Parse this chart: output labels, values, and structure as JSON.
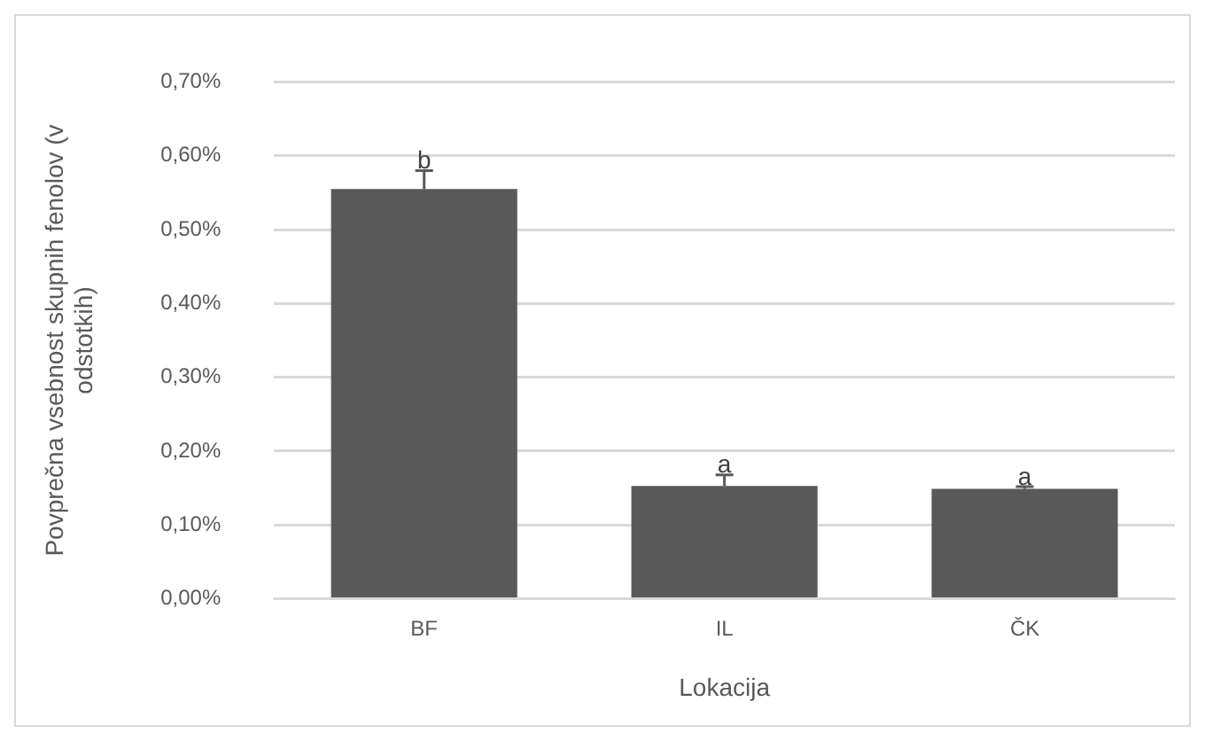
{
  "chart_data": {
    "type": "bar",
    "xlabel": "Lokacija",
    "ylabel": "Povprečna vsebnost skupnih fenolov (v odstotkih)",
    "categories": [
      "BF",
      "IL",
      "ČK"
    ],
    "values": [
      0.555,
      0.153,
      0.149
    ],
    "errors": [
      0.025,
      0.015,
      0.003
    ],
    "color": "#595959",
    "ylim": [
      0,
      0.7
    ],
    "yticks": [
      {
        "value": 0,
        "label": "0,00%"
      },
      {
        "value": 0.1,
        "label": "0,10%"
      },
      {
        "value": 0.2,
        "label": "0,20%"
      },
      {
        "value": 0.3,
        "label": "0,30%"
      },
      {
        "value": 0.4,
        "label": "0,40%"
      },
      {
        "value": 0.5,
        "label": "0,50%"
      },
      {
        "value": 0.6,
        "label": "0,60%"
      },
      {
        "value": 0.7,
        "label": "0,70%"
      }
    ],
    "grid": "y",
    "annotations": [
      {
        "text": "b",
        "x": "BF",
        "y": 0.58
      },
      {
        "text": "a",
        "x": "IL",
        "y": 0.168
      },
      {
        "text": "a",
        "x": "ČK",
        "y": 0.152
      }
    ]
  }
}
